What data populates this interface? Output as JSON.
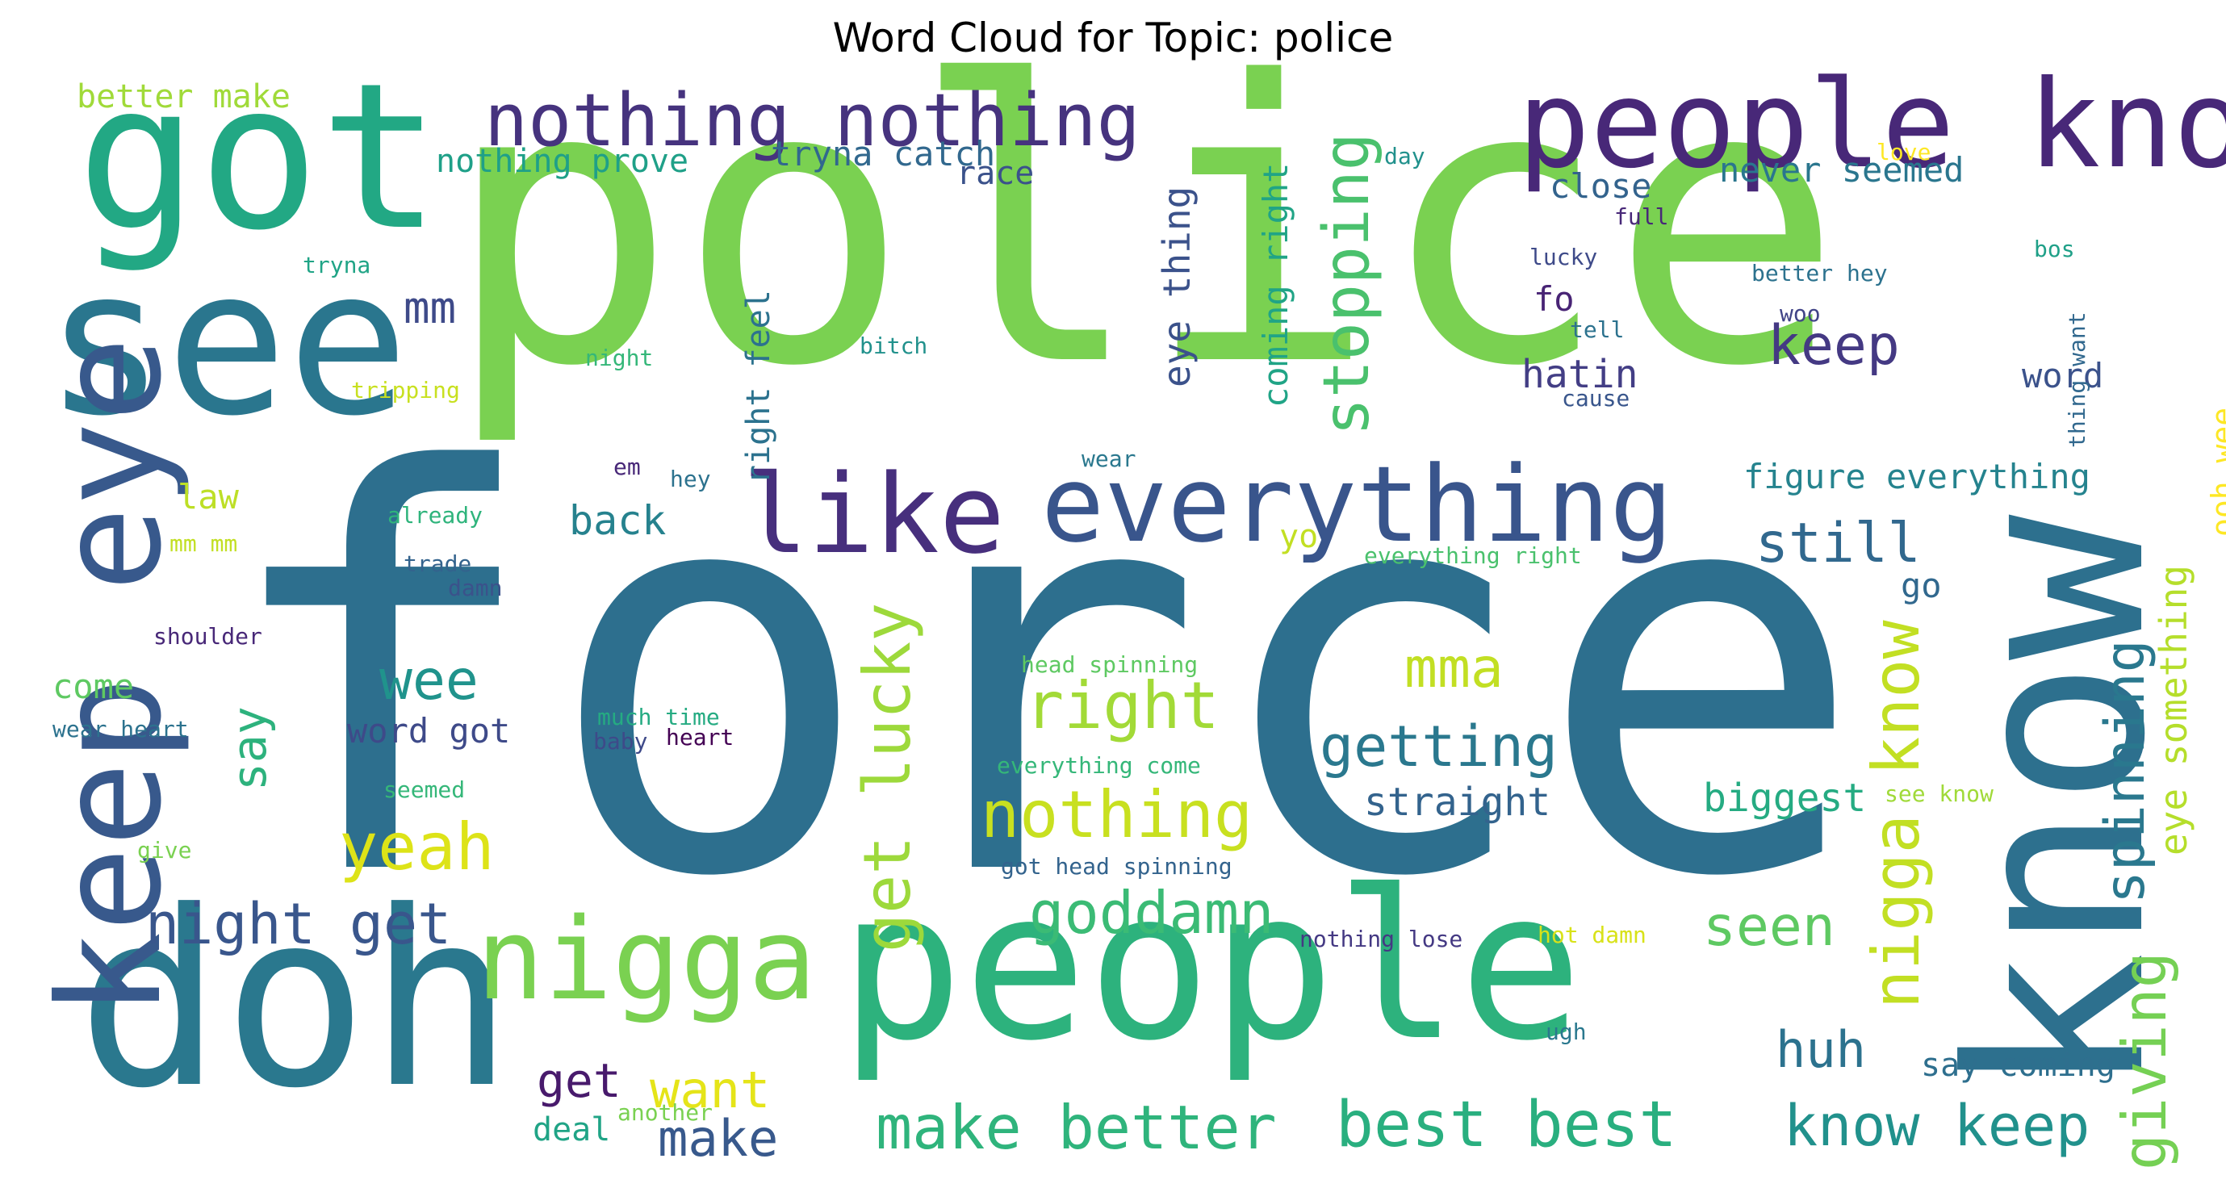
{
  "title": "Word Cloud for Topic: police",
  "words": [
    {
      "text": "force",
      "color": "#2d6f8e"
    },
    {
      "text": "police",
      "color": "#7ad151"
    },
    {
      "text": "people",
      "color": "#2db27d"
    },
    {
      "text": "know",
      "color": "#2d708e"
    },
    {
      "text": "doh",
      "color": "#2a788e"
    },
    {
      "text": "got",
      "color": "#22a884"
    },
    {
      "text": "see",
      "color": "#2a768e"
    },
    {
      "text": "keep eye",
      "color": "#38598c"
    },
    {
      "text": "people know",
      "color": "#482878"
    },
    {
      "text": "everything",
      "color": "#39558c"
    },
    {
      "text": "like",
      "color": "#472f7d"
    },
    {
      "text": "nigga",
      "color": "#7ad151"
    },
    {
      "text": "nothing nothing",
      "color": "#46337e"
    },
    {
      "text": "nigga know",
      "color": "#c2df23"
    },
    {
      "text": "make better",
      "color": "#2fb47c"
    },
    {
      "text": "best best",
      "color": "#29af7f"
    },
    {
      "text": "get lucky",
      "color": "#9dd93b"
    },
    {
      "text": "giving",
      "color": "#75d054"
    },
    {
      "text": "stopping",
      "color": "#4ac16d"
    },
    {
      "text": "spinning",
      "color": "#2a788e"
    },
    {
      "text": "right",
      "color": "#a2da37"
    },
    {
      "text": "nothing",
      "color": "#c8e020"
    },
    {
      "text": "goddamn",
      "color": "#3bbb75"
    },
    {
      "text": "getting",
      "color": "#2a788e"
    },
    {
      "text": "night get",
      "color": "#39568c"
    },
    {
      "text": "know keep",
      "color": "#21918c"
    },
    {
      "text": "yeah",
      "color": "#dde318"
    },
    {
      "text": "seen",
      "color": "#5ec962"
    },
    {
      "text": "still",
      "color": "#31688e"
    },
    {
      "text": "keep",
      "color": "#443983"
    },
    {
      "text": "wee",
      "color": "#20938c"
    },
    {
      "text": "mma",
      "color": "#c2df23"
    },
    {
      "text": "want",
      "color": "#e5e419"
    },
    {
      "text": "make",
      "color": "#38598c"
    },
    {
      "text": "get",
      "color": "#481a6c"
    },
    {
      "text": "huh",
      "color": "#2c728e"
    },
    {
      "text": "say",
      "color": "#2db27d"
    },
    {
      "text": "mm",
      "color": "#3e4a89"
    },
    {
      "text": "eye something",
      "color": "#b5de2b"
    },
    {
      "text": "eye thing",
      "color": "#3b528b"
    },
    {
      "text": "coming right",
      "color": "#20a486"
    },
    {
      "text": "right feel",
      "color": "#2c728e"
    },
    {
      "text": "figure everything",
      "color": "#25838e"
    },
    {
      "text": "tryna catch",
      "color": "#31688e"
    },
    {
      "text": "nothing prove",
      "color": "#1fa088"
    },
    {
      "text": "better make",
      "color": "#a0da39"
    },
    {
      "text": "never seemed",
      "color": "#2a768e"
    },
    {
      "text": "close",
      "color": "#33638d"
    },
    {
      "text": "straight",
      "color": "#33638d"
    },
    {
      "text": "biggest",
      "color": "#25ab82"
    },
    {
      "text": "hatin",
      "color": "#433e85"
    },
    {
      "text": "word",
      "color": "#3b528b"
    },
    {
      "text": "word got",
      "color": "#3e4a89"
    },
    {
      "text": "back",
      "color": "#26828e"
    },
    {
      "text": "come",
      "color": "#5ec962"
    },
    {
      "text": "law",
      "color": "#bddf26"
    },
    {
      "text": "race",
      "color": "#3b528b"
    },
    {
      "text": "fo",
      "color": "#482475"
    },
    {
      "text": "go",
      "color": "#31688e"
    },
    {
      "text": "ooh wee",
      "color": "#fde725"
    },
    {
      "text": "say coming",
      "color": "#2e6f8e"
    },
    {
      "text": "deal",
      "color": "#20a486"
    },
    {
      "text": "yo",
      "color": "#c2df23"
    },
    {
      "text": "love",
      "color": "#fde725"
    },
    {
      "text": "day",
      "color": "#21918c"
    },
    {
      "text": "full",
      "color": "#482878"
    },
    {
      "text": "lucky",
      "color": "#3e4a89"
    },
    {
      "text": "bos",
      "color": "#1fa088"
    },
    {
      "text": "better hey",
      "color": "#2c728e"
    },
    {
      "text": "woo",
      "color": "#414487"
    },
    {
      "text": "tell",
      "color": "#2c728e"
    },
    {
      "text": "thing want",
      "color": "#31688e"
    },
    {
      "text": "cause",
      "color": "#39568c"
    },
    {
      "text": "wear",
      "color": "#2a788e"
    },
    {
      "text": "tryna",
      "color": "#20a486"
    },
    {
      "text": "night",
      "color": "#35b779"
    },
    {
      "text": "bitch",
      "color": "#21918c"
    },
    {
      "text": "tripping",
      "color": "#c8e020"
    },
    {
      "text": "em",
      "color": "#482878"
    },
    {
      "text": "hey",
      "color": "#2c728e"
    },
    {
      "text": "already",
      "color": "#2fb47c"
    },
    {
      "text": "mm mm",
      "color": "#c2df23"
    },
    {
      "text": "trade",
      "color": "#33638d"
    },
    {
      "text": "damn",
      "color": "#3b528b"
    },
    {
      "text": "shoulder",
      "color": "#482878"
    },
    {
      "text": "everything right",
      "color": "#4ac16d"
    },
    {
      "text": "head spinning",
      "color": "#5ec962"
    },
    {
      "text": "much time",
      "color": "#25ab82"
    },
    {
      "text": "baby",
      "color": "#3e4a89"
    },
    {
      "text": "heart",
      "color": "#440154"
    },
    {
      "text": "wear heart",
      "color": "#2c728e"
    },
    {
      "text": "seemed",
      "color": "#35b779"
    },
    {
      "text": "give",
      "color": "#7ad151"
    },
    {
      "text": "everything come",
      "color": "#35b779"
    },
    {
      "text": "got head spinning",
      "color": "#33638d"
    },
    {
      "text": "see know",
      "color": "#a0da39"
    },
    {
      "text": "nothing lose",
      "color": "#443983"
    },
    {
      "text": "hot damn",
      "color": "#d8e219"
    },
    {
      "text": "ugh",
      "color": "#2a788e"
    },
    {
      "text": "another",
      "color": "#7ad151"
    }
  ]
}
